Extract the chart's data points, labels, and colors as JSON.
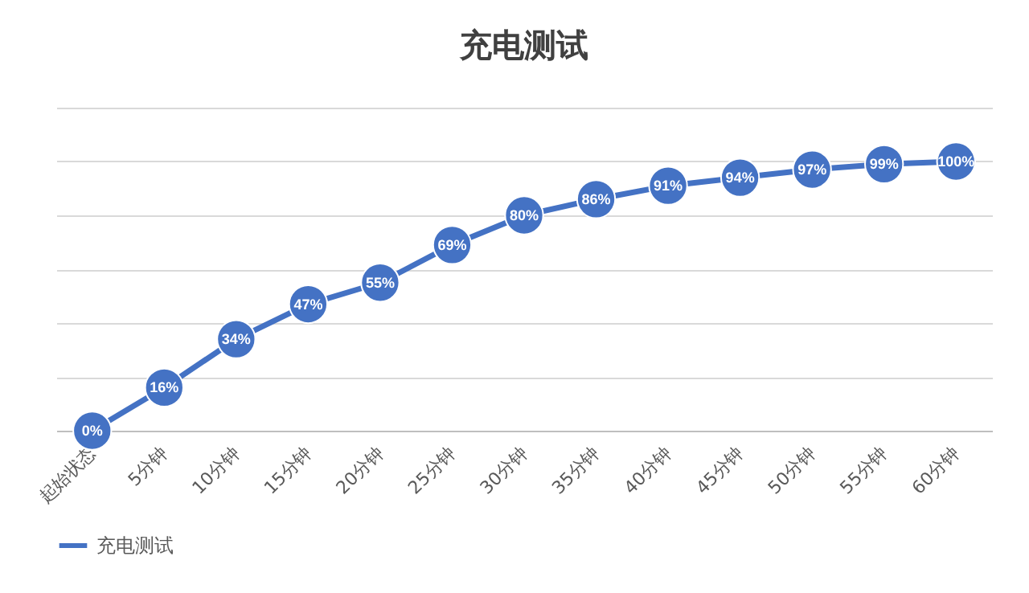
{
  "chart_data": {
    "type": "line",
    "title": "充电测试",
    "categories": [
      "起始状态",
      "5分钟",
      "10分钟",
      "15分钟",
      "20分钟",
      "25分钟",
      "30分钟",
      "35分钟",
      "40分钟",
      "45分钟",
      "50分钟",
      "55分钟",
      "60分钟"
    ],
    "series": [
      {
        "name": "充电测试",
        "color": "#4472c4",
        "values": [
          0,
          16,
          34,
          47,
          55,
          69,
          80,
          86,
          91,
          94,
          97,
          99,
          100
        ],
        "value_labels": [
          "0%",
          "16%",
          "34%",
          "47%",
          "55%",
          "69%",
          "80%",
          "86%",
          "91%",
          "94%",
          "97%",
          "99%",
          "100%"
        ]
      }
    ],
    "ylim": [
      0,
      120
    ],
    "yticks": [
      0,
      20,
      40,
      60,
      80,
      100,
      120
    ],
    "grid": "y",
    "tick_labels": "x",
    "legend": "bottom",
    "marker": "circle",
    "line_style": "solid"
  }
}
